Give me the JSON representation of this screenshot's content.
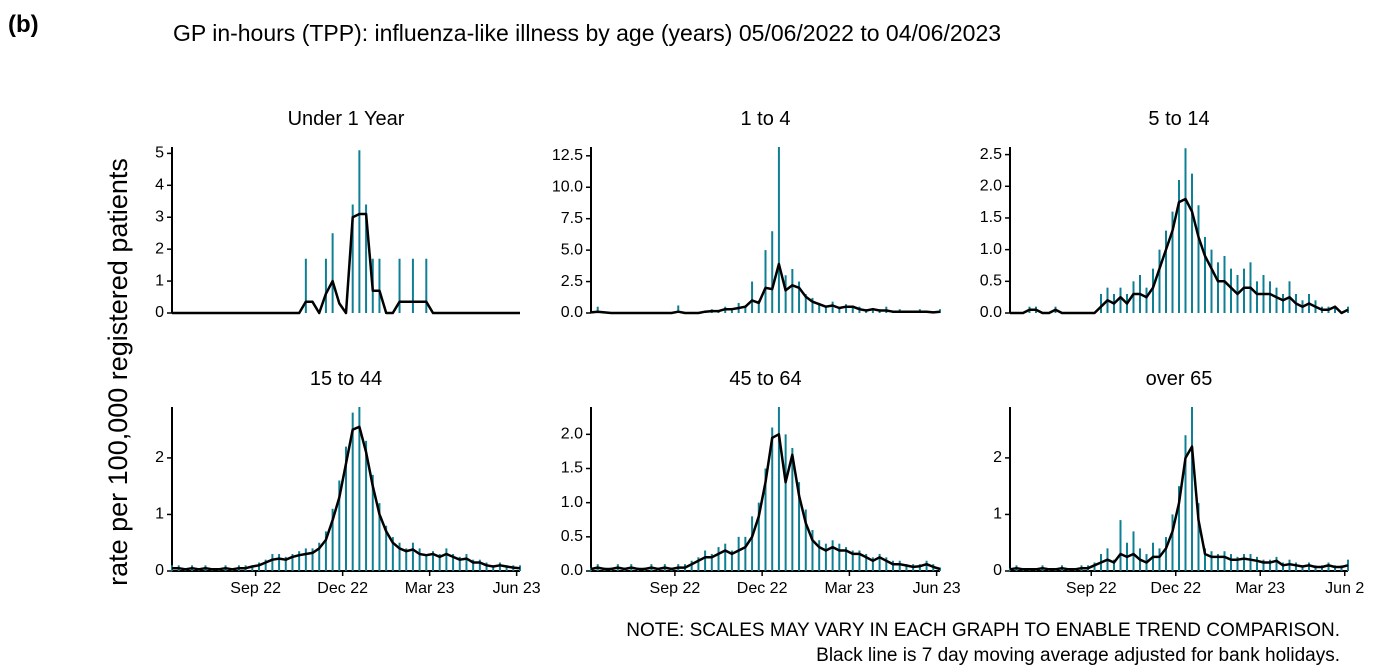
{
  "figure": {
    "panel_label": "(b)",
    "title": "GP in-hours (TPP): influenza-like illness by age (years) 05/06/2022 to 04/06/2023",
    "y_label": "rate per 100,000 registered patients",
    "note": "NOTE: SCALES MAY VARY IN EACH GRAPH TO ENABLE TREND COMPARISON.",
    "note2": "Black line is 7 day moving average adjusted for bank holidays."
  },
  "chart_data": [
    {
      "type": "line",
      "title": "Under 1 Year",
      "x": [
        0,
        1,
        2,
        3,
        4,
        5,
        6,
        7,
        8,
        9,
        10,
        11,
        12,
        13,
        14,
        15,
        16,
        17,
        18,
        19,
        20,
        21,
        22,
        23,
        24,
        25,
        26,
        27,
        28,
        29,
        30,
        31,
        32,
        33,
        34,
        35,
        36,
        37,
        38,
        39,
        40,
        41,
        42,
        43,
        44,
        45,
        46,
        47,
        48,
        49,
        50,
        51,
        52
      ],
      "xlim": [
        0,
        52
      ],
      "ylim": [
        0,
        5.2
      ],
      "yticks": [
        0,
        1,
        2,
        3,
        4,
        5
      ],
      "series": [
        {
          "type": "bar",
          "color": "#0f7f94",
          "values": [
            0,
            0,
            0,
            0,
            0,
            0,
            0,
            0,
            0,
            0,
            0,
            0,
            0,
            0,
            0,
            0,
            0,
            0,
            0,
            0,
            1.7,
            0,
            0,
            1.7,
            2.5,
            0,
            0,
            3.4,
            5.1,
            3.4,
            1.7,
            1.7,
            0,
            0,
            1.7,
            0,
            1.7,
            0,
            1.7,
            0,
            0,
            0,
            0,
            0,
            0,
            0,
            0,
            0,
            0,
            0,
            0,
            0,
            0
          ]
        },
        {
          "type": "line",
          "color": "#000000",
          "values": [
            0,
            0,
            0,
            0,
            0,
            0,
            0,
            0,
            0,
            0,
            0,
            0,
            0,
            0,
            0,
            0,
            0,
            0,
            0,
            0,
            0.35,
            0.35,
            0,
            0.6,
            1.0,
            0.3,
            0,
            3.0,
            3.1,
            3.1,
            0.7,
            0.7,
            0,
            0,
            0.35,
            0.35,
            0.35,
            0.35,
            0.35,
            0,
            0,
            0,
            0,
            0,
            0,
            0,
            0,
            0,
            0,
            0,
            0,
            0,
            0
          ]
        }
      ]
    },
    {
      "type": "line",
      "title": "1 to 4",
      "x": [
        0,
        1,
        2,
        3,
        4,
        5,
        6,
        7,
        8,
        9,
        10,
        11,
        12,
        13,
        14,
        15,
        16,
        17,
        18,
        19,
        20,
        21,
        22,
        23,
        24,
        25,
        26,
        27,
        28,
        29,
        30,
        31,
        32,
        33,
        34,
        35,
        36,
        37,
        38,
        39,
        40,
        41,
        42,
        43,
        44,
        45,
        46,
        47,
        48,
        49,
        50,
        51,
        52
      ],
      "xlim": [
        0,
        52
      ],
      "ylim": [
        0,
        13.2
      ],
      "yticks": [
        {
          "value": 0,
          "label": "0.0"
        },
        {
          "value": 2.5,
          "label": "2.5"
        },
        {
          "value": 5,
          "label": "5.0"
        },
        {
          "value": 7.5,
          "label": "7.5"
        },
        {
          "value": 10,
          "label": "10.0"
        },
        {
          "value": 12.5,
          "label": "12.5"
        }
      ],
      "series": [
        {
          "type": "bar",
          "color": "#0f7f94",
          "values": [
            0,
            0.5,
            0,
            0,
            0,
            0,
            0,
            0,
            0,
            0,
            0,
            0,
            0,
            0.6,
            0,
            0,
            0,
            0.2,
            0.3,
            0.2,
            0.5,
            0.4,
            0.8,
            0.6,
            2.5,
            1.0,
            5.0,
            6.5,
            13.2,
            3.0,
            3.5,
            2.5,
            1.5,
            1.2,
            0.8,
            0.6,
            0.9,
            0.5,
            0.7,
            0.6,
            0.5,
            0.3,
            0.4,
            0.3,
            0.5,
            0.2,
            0.3,
            0.2,
            0.2,
            0.3,
            0.2,
            0.1,
            0.3
          ]
        },
        {
          "type": "line",
          "color": "#000000",
          "values": [
            0.05,
            0.1,
            0.05,
            0,
            0,
            0,
            0,
            0,
            0,
            0,
            0,
            0,
            0,
            0.1,
            0,
            0,
            0,
            0.1,
            0.15,
            0.15,
            0.3,
            0.3,
            0.4,
            0.5,
            1.0,
            0.8,
            2.0,
            1.9,
            3.9,
            1.8,
            2.2,
            2.0,
            1.3,
            0.9,
            0.7,
            0.5,
            0.6,
            0.4,
            0.5,
            0.5,
            0.3,
            0.2,
            0.3,
            0.2,
            0.2,
            0.1,
            0.1,
            0.1,
            0.1,
            0.1,
            0.1,
            0.05,
            0.1
          ]
        }
      ]
    },
    {
      "type": "line",
      "title": "5 to 14",
      "x": [
        0,
        1,
        2,
        3,
        4,
        5,
        6,
        7,
        8,
        9,
        10,
        11,
        12,
        13,
        14,
        15,
        16,
        17,
        18,
        19,
        20,
        21,
        22,
        23,
        24,
        25,
        26,
        27,
        28,
        29,
        30,
        31,
        32,
        33,
        34,
        35,
        36,
        37,
        38,
        39,
        40,
        41,
        42,
        43,
        44,
        45,
        46,
        47,
        48,
        49,
        50,
        51,
        52
      ],
      "xlim": [
        0,
        52
      ],
      "ylim": [
        0,
        2.62
      ],
      "yticks": [
        {
          "value": 0,
          "label": "0.0"
        },
        {
          "value": 0.5,
          "label": "0.5"
        },
        {
          "value": 1,
          "label": "1.0"
        },
        {
          "value": 1.5,
          "label": "1.5"
        },
        {
          "value": 2,
          "label": "2.0"
        },
        {
          "value": 2.5,
          "label": "2.5"
        }
      ],
      "series": [
        {
          "type": "bar",
          "color": "#0f7f94",
          "values": [
            0,
            0,
            0,
            0.1,
            0.1,
            0,
            0,
            0.1,
            0,
            0,
            0,
            0,
            0,
            0,
            0.3,
            0.4,
            0.3,
            0.4,
            0.3,
            0.5,
            0.6,
            0.4,
            0.7,
            1.0,
            1.3,
            1.6,
            2.1,
            2.6,
            2.2,
            1.7,
            1.2,
            1.0,
            0.8,
            0.9,
            0.7,
            0.6,
            0.7,
            0.8,
            0.5,
            0.6,
            0.5,
            0.4,
            0.3,
            0.5,
            0.3,
            0.2,
            0.3,
            0.2,
            0.1,
            0.1,
            0.1,
            0,
            0.1
          ]
        },
        {
          "type": "line",
          "color": "#000000",
          "values": [
            0,
            0,
            0,
            0.05,
            0.05,
            0,
            0,
            0.05,
            0,
            0,
            0,
            0,
            0,
            0,
            0.1,
            0.2,
            0.15,
            0.25,
            0.15,
            0.3,
            0.3,
            0.25,
            0.4,
            0.7,
            1.0,
            1.3,
            1.75,
            1.8,
            1.6,
            1.2,
            0.9,
            0.7,
            0.5,
            0.5,
            0.4,
            0.3,
            0.4,
            0.4,
            0.3,
            0.3,
            0.3,
            0.25,
            0.2,
            0.25,
            0.15,
            0.1,
            0.15,
            0.1,
            0.05,
            0.05,
            0.1,
            0,
            0.05
          ]
        }
      ]
    },
    {
      "type": "line",
      "title": "15 to 44",
      "x": [
        0,
        1,
        2,
        3,
        4,
        5,
        6,
        7,
        8,
        9,
        10,
        11,
        12,
        13,
        14,
        15,
        16,
        17,
        18,
        19,
        20,
        21,
        22,
        23,
        24,
        25,
        26,
        27,
        28,
        29,
        30,
        31,
        32,
        33,
        34,
        35,
        36,
        37,
        38,
        39,
        40,
        41,
        42,
        43,
        44,
        45,
        46,
        47,
        48,
        49,
        50,
        51,
        52
      ],
      "xlim": [
        0,
        52
      ],
      "ylim": [
        0,
        2.9
      ],
      "yticks": [
        0,
        1,
        2
      ],
      "xticks": [
        {
          "value": 12.5,
          "label": "Sep 22"
        },
        {
          "value": 25.5,
          "label": "Dec 22"
        },
        {
          "value": 38.5,
          "label": "Mar 23"
        },
        {
          "value": 51.5,
          "label": "Jun 23"
        }
      ],
      "series": [
        {
          "type": "bar",
          "color": "#0f7f94",
          "values": [
            0.1,
            0.1,
            0.05,
            0.1,
            0.05,
            0.1,
            0.05,
            0.05,
            0.1,
            0.05,
            0.1,
            0.1,
            0.1,
            0.15,
            0.2,
            0.3,
            0.3,
            0.25,
            0.3,
            0.35,
            0.4,
            0.4,
            0.5,
            0.7,
            1.1,
            1.6,
            2.2,
            2.8,
            2.9,
            2.3,
            1.7,
            1.2,
            0.8,
            0.6,
            0.5,
            0.4,
            0.5,
            0.4,
            0.3,
            0.35,
            0.3,
            0.4,
            0.3,
            0.25,
            0.3,
            0.2,
            0.2,
            0.15,
            0.1,
            0.15,
            0.1,
            0.1,
            0.1
          ]
        },
        {
          "type": "line",
          "color": "#000000",
          "values": [
            0.05,
            0.05,
            0.03,
            0.05,
            0.03,
            0.05,
            0.03,
            0.03,
            0.05,
            0.03,
            0.05,
            0.05,
            0.08,
            0.1,
            0.15,
            0.2,
            0.22,
            0.2,
            0.25,
            0.28,
            0.3,
            0.32,
            0.4,
            0.55,
            0.9,
            1.3,
            1.9,
            2.5,
            2.55,
            2.1,
            1.5,
            1.0,
            0.7,
            0.5,
            0.4,
            0.35,
            0.38,
            0.3,
            0.28,
            0.3,
            0.25,
            0.3,
            0.25,
            0.2,
            0.22,
            0.15,
            0.15,
            0.1,
            0.08,
            0.1,
            0.08,
            0.06,
            0.05
          ]
        }
      ]
    },
    {
      "type": "line",
      "title": "45 to 64",
      "x": [
        0,
        1,
        2,
        3,
        4,
        5,
        6,
        7,
        8,
        9,
        10,
        11,
        12,
        13,
        14,
        15,
        16,
        17,
        18,
        19,
        20,
        21,
        22,
        23,
        24,
        25,
        26,
        27,
        28,
        29,
        30,
        31,
        32,
        33,
        34,
        35,
        36,
        37,
        38,
        39,
        40,
        41,
        42,
        43,
        44,
        45,
        46,
        47,
        48,
        49,
        50,
        51,
        52
      ],
      "xlim": [
        0,
        52
      ],
      "ylim": [
        0,
        2.4
      ],
      "yticks": [
        {
          "value": 0,
          "label": "0.0"
        },
        {
          "value": 0.5,
          "label": "0.5"
        },
        {
          "value": 1,
          "label": "1.0"
        },
        {
          "value": 1.5,
          "label": "1.5"
        },
        {
          "value": 2,
          "label": "2.0"
        }
      ],
      "xticks": [
        {
          "value": 12.5,
          "label": "Sep 22"
        },
        {
          "value": 25.5,
          "label": "Dec 22"
        },
        {
          "value": 38.5,
          "label": "Mar 23"
        },
        {
          "value": 51.5,
          "label": "Jun 23"
        }
      ],
      "series": [
        {
          "type": "bar",
          "color": "#0f7f94",
          "values": [
            0.05,
            0.1,
            0.05,
            0.05,
            0.1,
            0.05,
            0.1,
            0.05,
            0.05,
            0.1,
            0.05,
            0.1,
            0.05,
            0.1,
            0.1,
            0.15,
            0.2,
            0.3,
            0.25,
            0.35,
            0.4,
            0.3,
            0.5,
            0.5,
            0.8,
            1.0,
            1.5,
            2.1,
            2.4,
            2.0,
            1.8,
            1.3,
            0.9,
            0.6,
            0.45,
            0.4,
            0.45,
            0.4,
            0.35,
            0.3,
            0.3,
            0.25,
            0.2,
            0.25,
            0.2,
            0.15,
            0.15,
            0.1,
            0.1,
            0.1,
            0.15,
            0.1,
            0.05
          ]
        },
        {
          "type": "line",
          "color": "#000000",
          "values": [
            0.03,
            0.05,
            0.03,
            0.03,
            0.05,
            0.03,
            0.05,
            0.03,
            0.03,
            0.05,
            0.03,
            0.05,
            0.03,
            0.05,
            0.05,
            0.1,
            0.15,
            0.2,
            0.2,
            0.25,
            0.3,
            0.25,
            0.3,
            0.35,
            0.5,
            0.8,
            1.3,
            1.95,
            2.0,
            1.3,
            1.7,
            1.1,
            0.7,
            0.45,
            0.35,
            0.3,
            0.35,
            0.3,
            0.3,
            0.25,
            0.25,
            0.2,
            0.15,
            0.2,
            0.15,
            0.1,
            0.1,
            0.08,
            0.06,
            0.07,
            0.1,
            0.06,
            0.03
          ]
        }
      ]
    },
    {
      "type": "line",
      "title": "over 65",
      "x": [
        0,
        1,
        2,
        3,
        4,
        5,
        6,
        7,
        8,
        9,
        10,
        11,
        12,
        13,
        14,
        15,
        16,
        17,
        18,
        19,
        20,
        21,
        22,
        23,
        24,
        25,
        26,
        27,
        28,
        29,
        30,
        31,
        32,
        33,
        34,
        35,
        36,
        37,
        38,
        39,
        40,
        41,
        42,
        43,
        44,
        45,
        46,
        47,
        48,
        49,
        50,
        51,
        52
      ],
      "xlim": [
        0,
        52
      ],
      "ylim": [
        0,
        2.9
      ],
      "yticks": [
        0,
        1,
        2
      ],
      "xticks": [
        {
          "value": 12.5,
          "label": "Sep 22"
        },
        {
          "value": 25.5,
          "label": "Dec 22"
        },
        {
          "value": 38.5,
          "label": "Mar 23"
        },
        {
          "value": 51.5,
          "label": "Jun 2"
        }
      ],
      "series": [
        {
          "type": "bar",
          "color": "#0f7f94",
          "values": [
            0.05,
            0.1,
            0.05,
            0.05,
            0.05,
            0.1,
            0.05,
            0.05,
            0.1,
            0.05,
            0.05,
            0.1,
            0.1,
            0.15,
            0.3,
            0.4,
            0.2,
            0.9,
            0.5,
            0.7,
            0.4,
            0.3,
            0.5,
            0.4,
            0.6,
            1.0,
            1.5,
            2.4,
            2.9,
            1.2,
            0.4,
            0.35,
            0.3,
            0.35,
            0.3,
            0.25,
            0.3,
            0.3,
            0.25,
            0.2,
            0.2,
            0.25,
            0.15,
            0.2,
            0.15,
            0.1,
            0.15,
            0.1,
            0.1,
            0.15,
            0.1,
            0.1,
            0.2
          ]
        },
        {
          "type": "line",
          "color": "#000000",
          "values": [
            0.03,
            0.05,
            0.03,
            0.03,
            0.03,
            0.05,
            0.03,
            0.03,
            0.05,
            0.03,
            0.03,
            0.05,
            0.05,
            0.1,
            0.15,
            0.2,
            0.15,
            0.3,
            0.25,
            0.3,
            0.2,
            0.15,
            0.25,
            0.25,
            0.4,
            0.7,
            1.2,
            2.0,
            2.2,
            0.9,
            0.3,
            0.25,
            0.25,
            0.25,
            0.2,
            0.2,
            0.22,
            0.2,
            0.18,
            0.15,
            0.15,
            0.18,
            0.1,
            0.12,
            0.1,
            0.08,
            0.1,
            0.07,
            0.07,
            0.1,
            0.07,
            0.07,
            0.1
          ]
        }
      ]
    }
  ]
}
